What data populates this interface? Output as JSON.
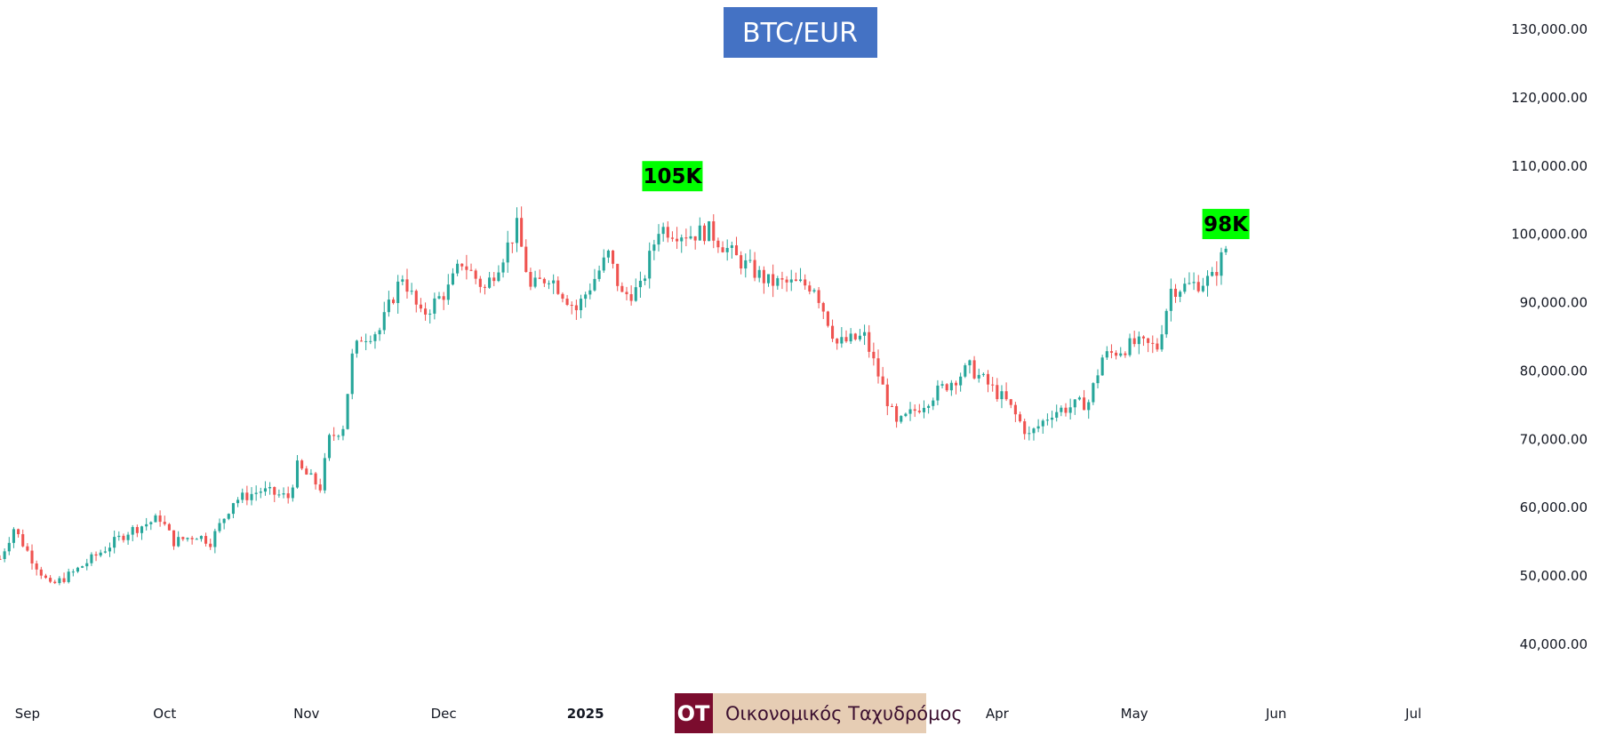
{
  "chart_data": {
    "type": "candlestick",
    "title": "BTC/EUR",
    "y_axis": {
      "ticks": [
        "130,000.00",
        "120,000.00",
        "110,000.00",
        "100,000.00",
        "90,000.00",
        "80,000.00",
        "70,000.00",
        "60,000.00",
        "50,000.00",
        "40,000.00"
      ],
      "range": [
        35000,
        133000
      ]
    },
    "x_axis": {
      "labels": [
        "Sep",
        "Oct",
        "Nov",
        "Dec",
        "2025",
        "Apr",
        "May",
        "Jun",
        "Jul"
      ],
      "bold_label": "2025",
      "range": [
        "2024-08-26",
        "2025-07-21"
      ]
    },
    "colors": {
      "up": "#26a69a",
      "down": "#ef5350",
      "callout": "#00ff00",
      "title_bg": "#4472c4",
      "logo_dark": "#7b0c2e",
      "logo_light": "#e6cdb4"
    },
    "annotations": [
      {
        "text": "105K",
        "date": "2025-01-20",
        "value": 105000
      },
      {
        "text": "98K",
        "date": "2025-05-21",
        "value": 98000
      }
    ],
    "close_path": [
      [
        "2024-08-26",
        52500
      ],
      [
        "2024-08-29",
        57000
      ],
      [
        "2024-09-02",
        52500
      ],
      [
        "2024-09-06",
        48500
      ],
      [
        "2024-09-11",
        50500
      ],
      [
        "2024-09-18",
        54000
      ],
      [
        "2024-09-23",
        56500
      ],
      [
        "2024-09-30",
        58500
      ],
      [
        "2024-10-03",
        55000
      ],
      [
        "2024-10-08",
        56000
      ],
      [
        "2024-10-11",
        55000
      ],
      [
        "2024-10-16",
        61000
      ],
      [
        "2024-10-22",
        62500
      ],
      [
        "2024-10-28",
        61500
      ],
      [
        "2024-10-30",
        66000
      ],
      [
        "2024-11-04",
        63000
      ],
      [
        "2024-11-06",
        70000
      ],
      [
        "2024-11-09",
        72000
      ],
      [
        "2024-11-11",
        82000
      ],
      [
        "2024-11-13",
        85000
      ],
      [
        "2024-11-17",
        86000
      ],
      [
        "2024-11-20",
        91000
      ],
      [
        "2024-11-22",
        94000
      ],
      [
        "2024-11-26",
        88000
      ],
      [
        "2024-12-02",
        92000
      ],
      [
        "2024-12-05",
        96000
      ],
      [
        "2024-12-10",
        92000
      ],
      [
        "2024-12-14",
        97000
      ],
      [
        "2024-12-17",
        101000
      ],
      [
        "2024-12-20",
        92000
      ],
      [
        "2024-12-24",
        94000
      ],
      [
        "2024-12-30",
        89000
      ],
      [
        "2025-01-06",
        97000
      ],
      [
        "2025-01-09",
        91000
      ],
      [
        "2025-01-13",
        92000
      ],
      [
        "2025-01-17",
        101000
      ],
      [
        "2025-01-20",
        100500
      ],
      [
        "2025-01-24",
        100000
      ],
      [
        "2025-01-28",
        100500
      ],
      [
        "2025-02-03",
        96500
      ],
      [
        "2025-02-10",
        93000
      ],
      [
        "2025-02-20",
        92500
      ],
      [
        "2025-02-25",
        84000
      ],
      [
        "2025-03-03",
        85000
      ],
      [
        "2025-03-10",
        72000
      ],
      [
        "2025-03-18",
        76500
      ],
      [
        "2025-03-26",
        80500
      ],
      [
        "2025-04-03",
        75500
      ],
      [
        "2025-04-08",
        70500
      ],
      [
        "2025-04-13",
        74000
      ],
      [
        "2025-04-21",
        75500
      ],
      [
        "2025-04-24",
        82000
      ],
      [
        "2025-05-01",
        84000
      ],
      [
        "2025-05-06",
        83500
      ],
      [
        "2025-05-09",
        92000
      ],
      [
        "2025-05-13",
        92500
      ],
      [
        "2025-05-18",
        93500
      ],
      [
        "2025-05-21",
        98000
      ]
    ]
  },
  "logo": {
    "initials": "OT",
    "name": "Οικονομικός Ταχυδρόμος"
  }
}
